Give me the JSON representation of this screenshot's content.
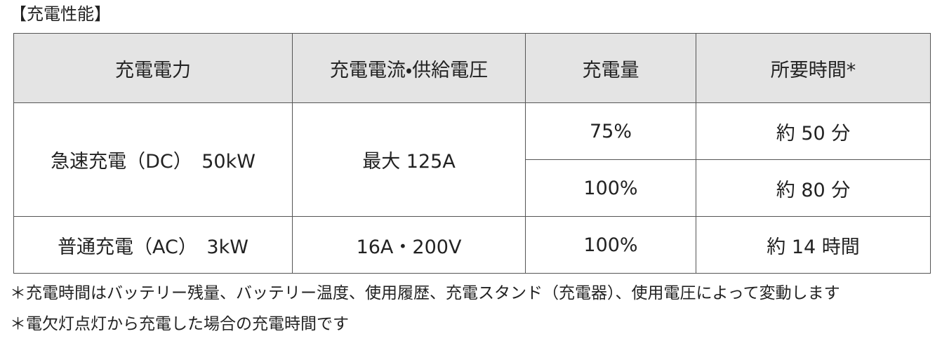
{
  "title": "【充電性能】",
  "table": {
    "header": [
      "充電電力",
      "充電電流・供給電圧",
      "充電量",
      "所要時間*"
    ],
    "rows": [
      [
        "急速充電（DC）　50kW",
        "最大 125A",
        "75%",
        "約 50 分"
      ],
      [
        "100%",
        "約 80 分"
      ],
      [
        "普通充電（AC）　3kW",
        "16A・200V",
        "100%",
        "約 14 時間"
      ]
    ]
  },
  "notes": [
    "＊充電時間はバッテリー残量、バッテリー温度、使用履歴、充電スタンド（充電器）、使用電圧によって変動します",
    "＊電欠灯点灯から充電した場合の充電時間です"
  ]
}
